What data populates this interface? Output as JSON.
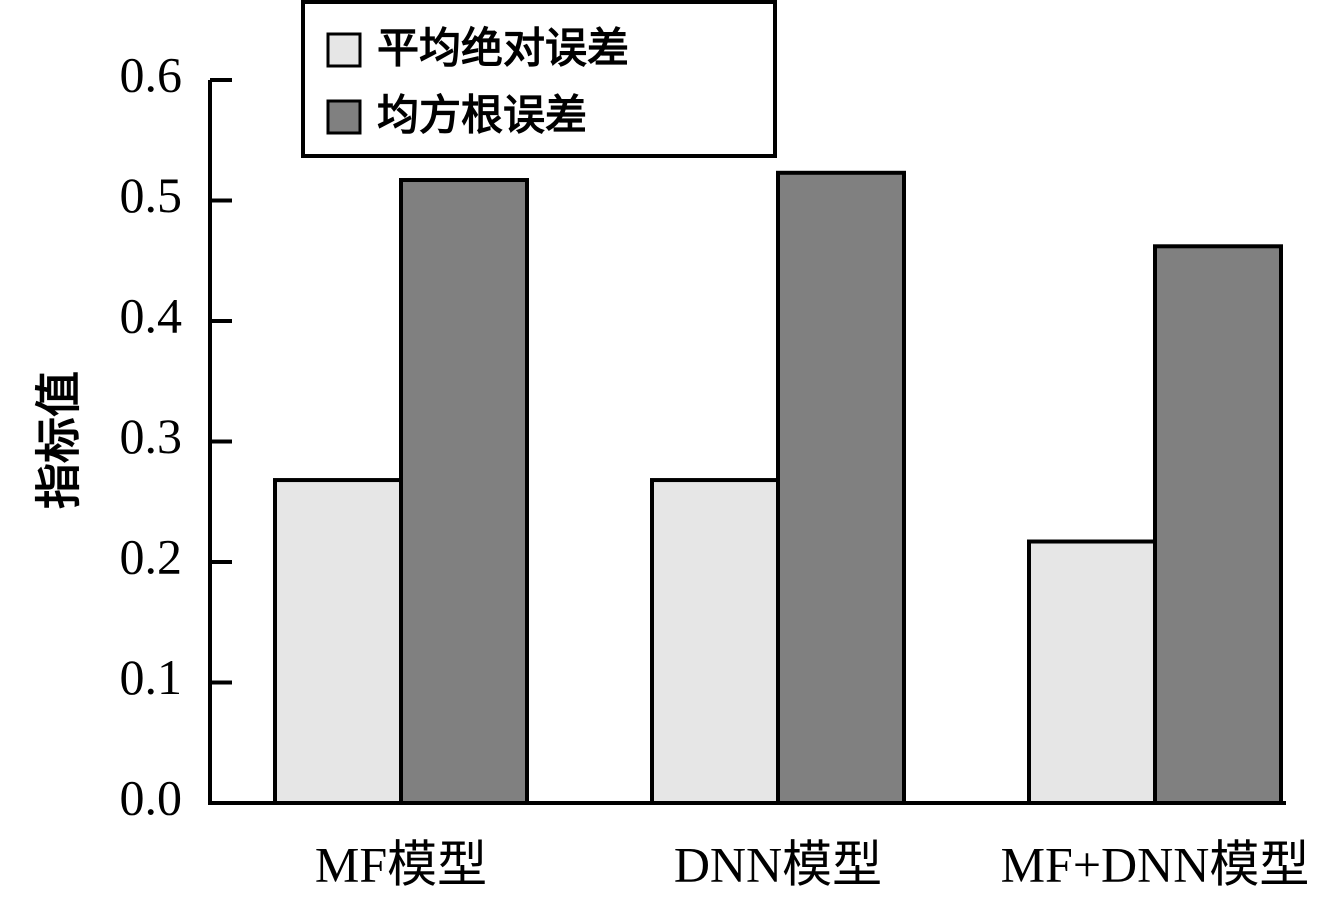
{
  "chart_data": {
    "type": "bar",
    "categories": [
      "MF模型",
      "DNN模型",
      "MF+DNN模型"
    ],
    "series": [
      {
        "name": "平均绝对误差",
        "values": [
          0.268,
          0.268,
          0.217
        ],
        "color": "#e6e6e6"
      },
      {
        "name": "均方根误差",
        "values": [
          0.517,
          0.523,
          0.462
        ],
        "color": "#808080"
      }
    ],
    "title": "",
    "xlabel": "",
    "ylabel": "指标值",
    "ylim": [
      0,
      0.6
    ],
    "yticks": [
      0.0,
      0.1,
      0.2,
      0.3,
      0.4,
      0.5,
      0.6
    ],
    "ytick_labels": [
      "0.0",
      "0.1",
      "0.2",
      "0.3",
      "0.4",
      "0.5",
      "0.6"
    ],
    "grid": false,
    "legend_position": "top-left",
    "bar_edge_color": "#000000"
  }
}
